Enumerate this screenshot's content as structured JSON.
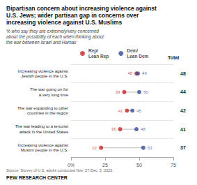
{
  "chart_data": {
    "type": "dumbbell",
    "title": "Bipartisan concern about increasing violence against\nU.S. Jews; wider partisan gap in concerns over\nincreasing violence against U.S. Muslims",
    "subtitle": "% who say they are extremely/very concerned\nabout the possibility of each when thinking about\nthe war between Israel and Hamas",
    "categories": [
      "Increasing violence against\nJewish people in the U.S.",
      "The war going on for\na very long time",
      "The war expanding to other\ncountries in the region",
      "The war leading to a terrorist\nattack in the United States",
      "Increasing violence against\nMuslim people in the U.S."
    ],
    "series": [
      {
        "name": "Rep/\nLean Rep",
        "color": "#cc2222",
        "values": [
          48,
          39,
          41,
          36,
          22
        ]
      },
      {
        "name": "Dem/\nLean Dem",
        "color": "#334d99",
        "values": [
          49,
          50,
          45,
          48,
          53
        ]
      }
    ],
    "totals_label": "Total",
    "totals": [
      48,
      44,
      42,
      41,
      37
    ],
    "xlim": [
      0,
      75
    ],
    "xticks": [
      {
        "value": 0,
        "label": "0%"
      },
      25,
      50,
      75
    ],
    "data_labels": true,
    "legend": "top",
    "grid": true,
    "source": "Source: Survey of U.S. adults conducted Nov. 27-Dec. 3, 2023.",
    "footer": "PEW RESEARCH CENTER"
  }
}
